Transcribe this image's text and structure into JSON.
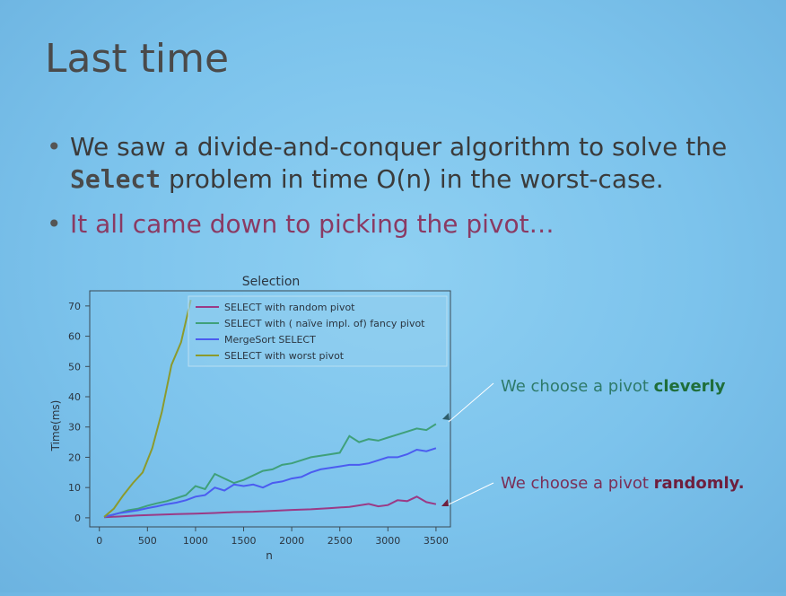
{
  "slide": {
    "title": "Last time",
    "bullet1_part1": "We saw a divide-and-conquer algorithm to solve the",
    "bullet1_code": "Select",
    "bullet1_part2": " problem in time O(n) in the worst-case.",
    "bullet2": "It all came down to picking the pivot…",
    "bullet_symbol": "•"
  },
  "annotations": {
    "clever_prefix": "We choose a pivot ",
    "clever_bold": "cleverly",
    "random_prefix": "We choose a pivot ",
    "random_bold": "randomly."
  },
  "chart_data": {
    "type": "line",
    "title": "Selection",
    "xlabel": "n",
    "ylabel": "Time(ms)",
    "xlim": [
      -100,
      3650
    ],
    "ylim": [
      -3,
      75
    ],
    "xticks": [
      0,
      500,
      1000,
      1500,
      2000,
      2500,
      3000,
      3500
    ],
    "yticks": [
      0,
      10,
      20,
      30,
      40,
      50,
      60,
      70
    ],
    "legend_position": "top-right",
    "grid": false,
    "series": [
      {
        "name": "SELECT with random pivot",
        "color": "#9b3a86",
        "x": [
          50,
          200,
          400,
          600,
          800,
          1000,
          1200,
          1400,
          1600,
          1800,
          2000,
          2200,
          2400,
          2600,
          2800,
          2900,
          3000,
          3100,
          3200,
          3300,
          3400,
          3500
        ],
        "y": [
          0.2,
          0.4,
          0.8,
          1.0,
          1.2,
          1.4,
          1.6,
          1.9,
          2.0,
          2.3,
          2.6,
          2.8,
          3.2,
          3.6,
          4.6,
          3.8,
          4.2,
          5.8,
          5.5,
          7.0,
          5.2,
          4.5
        ]
      },
      {
        "name": "SELECT with ( naïve impl. of) fancy pivot",
        "color": "#3fa07a",
        "x": [
          50,
          200,
          300,
          400,
          500,
          600,
          700,
          800,
          900,
          1000,
          1100,
          1200,
          1300,
          1400,
          1500,
          1600,
          1700,
          1800,
          1900,
          2000,
          2100,
          2200,
          2300,
          2400,
          2500,
          2600,
          2700,
          2800,
          2900,
          3000,
          3100,
          3200,
          3300,
          3400,
          3500
        ],
        "y": [
          0.3,
          1.5,
          2.5,
          3.0,
          4.0,
          4.8,
          5.5,
          6.5,
          7.5,
          10.5,
          9.5,
          14.5,
          13.0,
          11.5,
          12.5,
          14.0,
          15.5,
          16.0,
          17.5,
          18.0,
          19.0,
          20.0,
          20.5,
          21.0,
          21.5,
          27.0,
          25.0,
          26.0,
          25.5,
          26.5,
          27.5,
          28.5,
          29.5,
          29.0,
          31.0
        ]
      },
      {
        "name": "MergeSort SELECT",
        "color": "#4b5cf0",
        "x": [
          50,
          200,
          300,
          400,
          500,
          600,
          700,
          800,
          900,
          1000,
          1100,
          1200,
          1300,
          1400,
          1500,
          1600,
          1700,
          1800,
          1900,
          2000,
          2100,
          2200,
          2300,
          2400,
          2500,
          2600,
          2700,
          2800,
          2900,
          3000,
          3100,
          3200,
          3300,
          3400,
          3500
        ],
        "y": [
          0.3,
          1.5,
          2.0,
          2.5,
          3.2,
          3.8,
          4.5,
          5.0,
          5.8,
          7.0,
          7.5,
          10.0,
          9.0,
          11.0,
          10.5,
          11.0,
          10.0,
          11.5,
          12.0,
          13.0,
          13.5,
          15.0,
          16.0,
          16.5,
          17.0,
          17.5,
          17.5,
          18.0,
          19.0,
          20.0,
          20.0,
          21.0,
          22.5,
          22.0,
          23.0
        ]
      },
      {
        "name": "SELECT with worst pivot",
        "color": "#8c9a2c",
        "x": [
          50,
          150,
          250,
          350,
          450,
          550,
          650,
          750,
          850,
          950
        ],
        "y": [
          0.3,
          3.0,
          7.5,
          11.5,
          15.0,
          23.0,
          35.0,
          50.5,
          58.0,
          72.0
        ]
      }
    ]
  }
}
